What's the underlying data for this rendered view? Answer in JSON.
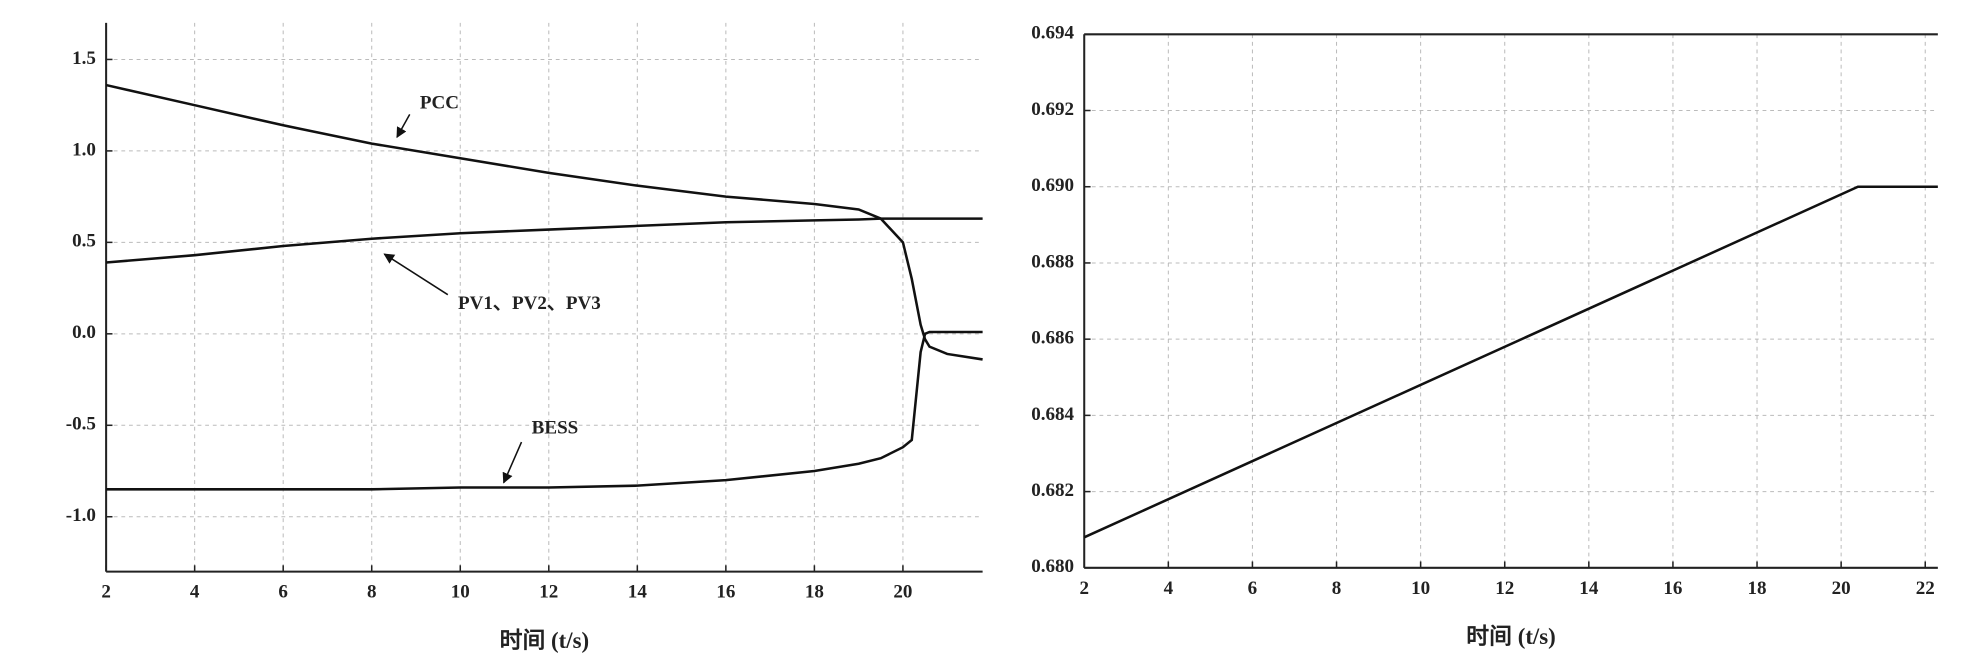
{
  "chart_data": [
    {
      "type": "line",
      "x_label": "时间 (t/s)",
      "x": [
        2,
        4,
        6,
        8,
        10,
        12,
        14,
        16,
        18,
        19,
        19.5,
        20,
        20.2,
        20.4,
        20.5,
        20.6,
        21,
        21.8
      ],
      "series": [
        {
          "name": "PCC",
          "color": "#111",
          "values": [
            1.36,
            1.25,
            1.14,
            1.04,
            0.96,
            0.88,
            0.81,
            0.75,
            0.71,
            0.68,
            0.63,
            0.5,
            0.3,
            0.05,
            -0.03,
            -0.07,
            -0.11,
            -0.14
          ]
        },
        {
          "name": "PV1、PV2、PV3",
          "color": "#111",
          "values": [
            0.39,
            0.43,
            0.48,
            0.52,
            0.55,
            0.57,
            0.59,
            0.61,
            0.62,
            0.625,
            0.63,
            0.63,
            0.63,
            0.63,
            0.63,
            0.63,
            0.63,
            0.63
          ]
        },
        {
          "name": "BESS",
          "color": "#111",
          "values": [
            -0.85,
            -0.85,
            -0.85,
            -0.85,
            -0.84,
            -0.84,
            -0.83,
            -0.8,
            -0.75,
            -0.71,
            -0.68,
            -0.62,
            -0.58,
            -0.1,
            0,
            0.01,
            0.01,
            0.01
          ]
        }
      ],
      "xlim": [
        2,
        21.8
      ],
      "xticks": [
        2,
        4,
        6,
        8,
        10,
        12,
        14,
        16,
        18,
        20
      ],
      "ylim": [
        -1.3,
        1.7
      ],
      "yticks": [
        {
          "value": -1.0,
          "label": "-1.0"
        },
        -0.5,
        {
          "value": 0.0,
          "label": "0.0"
        },
        0.5,
        {
          "value": 1.0,
          "label": "1.0"
        },
        1.5
      ],
      "grid": true
    },
    {
      "type": "line",
      "x_label": "时间 (t/s)",
      "x": [
        2,
        20.4,
        22.3
      ],
      "series": [
        {
          "color": "#111",
          "values": [
            0.6808,
            0.69,
            0.69
          ]
        }
      ],
      "xlim": [
        2,
        22.3
      ],
      "xticks": [
        2,
        4,
        6,
        8,
        10,
        12,
        14,
        16,
        18,
        20,
        22
      ],
      "ylim": [
        0.68,
        0.694
      ],
      "yticks": [
        {
          "value": 0.68,
          "label": "0.680"
        },
        0.682,
        0.684,
        0.686,
        0.688,
        {
          "value": 0.69,
          "label": "0.690"
        },
        0.692,
        0.694
      ],
      "grid": true
    }
  ]
}
